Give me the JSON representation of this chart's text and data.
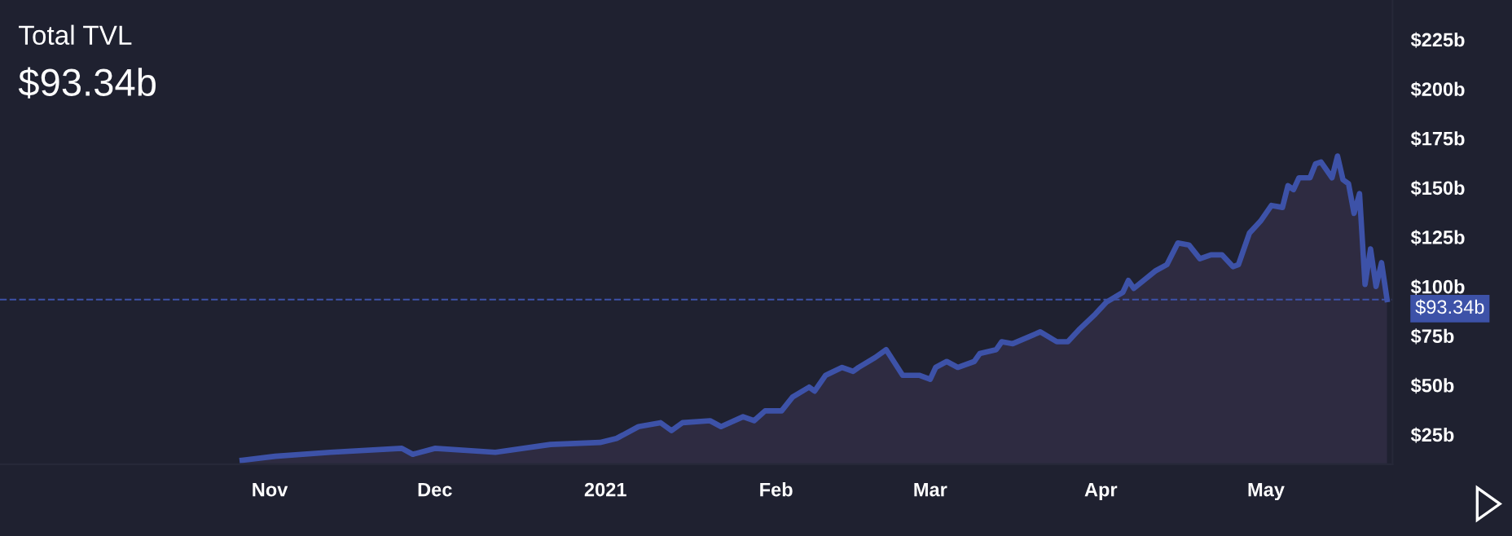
{
  "chart_data": {
    "type": "area",
    "title": "Total TVL",
    "subtitle": "$93.34b",
    "x": [
      "2020-10-27",
      "2020-11-02",
      "2020-11-12",
      "2020-11-25",
      "2020-11-27",
      "2020-12-01",
      "2020-12-12",
      "2020-12-22",
      "2020-12-31",
      "2021-01-03",
      "2021-01-07",
      "2021-01-11",
      "2021-01-13",
      "2021-01-15",
      "2021-01-20",
      "2021-01-22",
      "2021-01-26",
      "2021-01-28",
      "2021-01-30",
      "2021-02-02",
      "2021-02-04",
      "2021-02-07",
      "2021-02-08",
      "2021-02-10",
      "2021-02-13",
      "2021-02-15",
      "2021-02-16",
      "2021-02-19",
      "2021-02-21",
      "2021-02-24",
      "2021-02-27",
      "2021-03-01",
      "2021-03-02",
      "2021-03-04",
      "2021-03-06",
      "2021-03-09",
      "2021-03-10",
      "2021-03-13",
      "2021-03-14",
      "2021-03-16",
      "2021-03-21",
      "2021-03-24",
      "2021-03-26",
      "2021-03-28",
      "2021-03-31",
      "2021-04-02",
      "2021-04-05",
      "2021-04-06",
      "2021-04-07",
      "2021-04-11",
      "2021-04-13",
      "2021-04-15",
      "2021-04-17",
      "2021-04-19",
      "2021-04-21",
      "2021-04-23",
      "2021-04-25",
      "2021-04-26",
      "2021-04-28",
      "2021-04-30",
      "2021-05-02",
      "2021-05-04",
      "2021-05-05",
      "2021-05-06",
      "2021-05-07",
      "2021-05-09",
      "2021-05-10",
      "2021-05-11",
      "2021-05-13",
      "2021-05-14",
      "2021-05-15",
      "2021-05-16",
      "2021-05-17",
      "2021-05-18",
      "2021-05-19",
      "2021-05-20",
      "2021-05-21",
      "2021-05-22",
      "2021-05-23"
    ],
    "series": [
      {
        "color": "#3d52a8",
        "values": [
          12,
          14,
          16,
          18,
          15,
          18,
          16,
          20,
          21,
          23,
          29,
          31,
          27,
          31,
          32,
          29,
          34,
          32,
          37,
          37,
          44,
          49,
          47,
          55,
          59,
          57,
          59,
          64,
          68,
          55,
          55,
          53,
          59,
          62,
          59,
          62,
          66,
          68,
          72,
          71,
          77,
          72,
          72,
          78,
          86,
          92,
          97,
          103,
          99,
          108,
          111,
          122,
          121,
          114,
          116,
          116,
          110,
          111,
          127,
          133,
          141,
          140,
          151,
          149,
          155,
          155,
          162,
          163,
          155,
          166,
          154,
          152,
          137,
          147,
          101,
          119,
          100,
          112,
          93.34
        ]
      }
    ],
    "xlim": [
      "2020-09-13",
      "2021-05-24"
    ],
    "xticks": [
      {
        "value": "2020-11-01",
        "label": "Nov"
      },
      {
        "value": "2020-12-01",
        "label": "Dec"
      },
      {
        "value": "2021-01-01",
        "label": "2021"
      },
      {
        "value": "2021-02-01",
        "label": "Feb"
      },
      {
        "value": "2021-03-01",
        "label": "Mar"
      },
      {
        "value": "2021-04-01",
        "label": "Apr"
      },
      {
        "value": "2021-05-01",
        "label": "May"
      }
    ],
    "ylim": [
      10,
      245
    ],
    "yticks": [
      {
        "value": 25,
        "label": "$25b"
      },
      {
        "value": 50,
        "label": "$50b"
      },
      {
        "value": 75,
        "label": "$75b"
      },
      {
        "value": 100,
        "label": "$100b"
      },
      {
        "value": 125,
        "label": "$125b"
      },
      {
        "value": 150,
        "label": "$150b"
      },
      {
        "value": 175,
        "label": "$175b"
      },
      {
        "value": 200,
        "label": "$200b"
      },
      {
        "value": 225,
        "label": "$225b"
      }
    ],
    "ref_lines": [
      {
        "axis": "y",
        "value": 93.34,
        "label": "$93.34b",
        "color": "#3d52a8",
        "line_style": "dashed"
      }
    ],
    "grid": false
  }
}
